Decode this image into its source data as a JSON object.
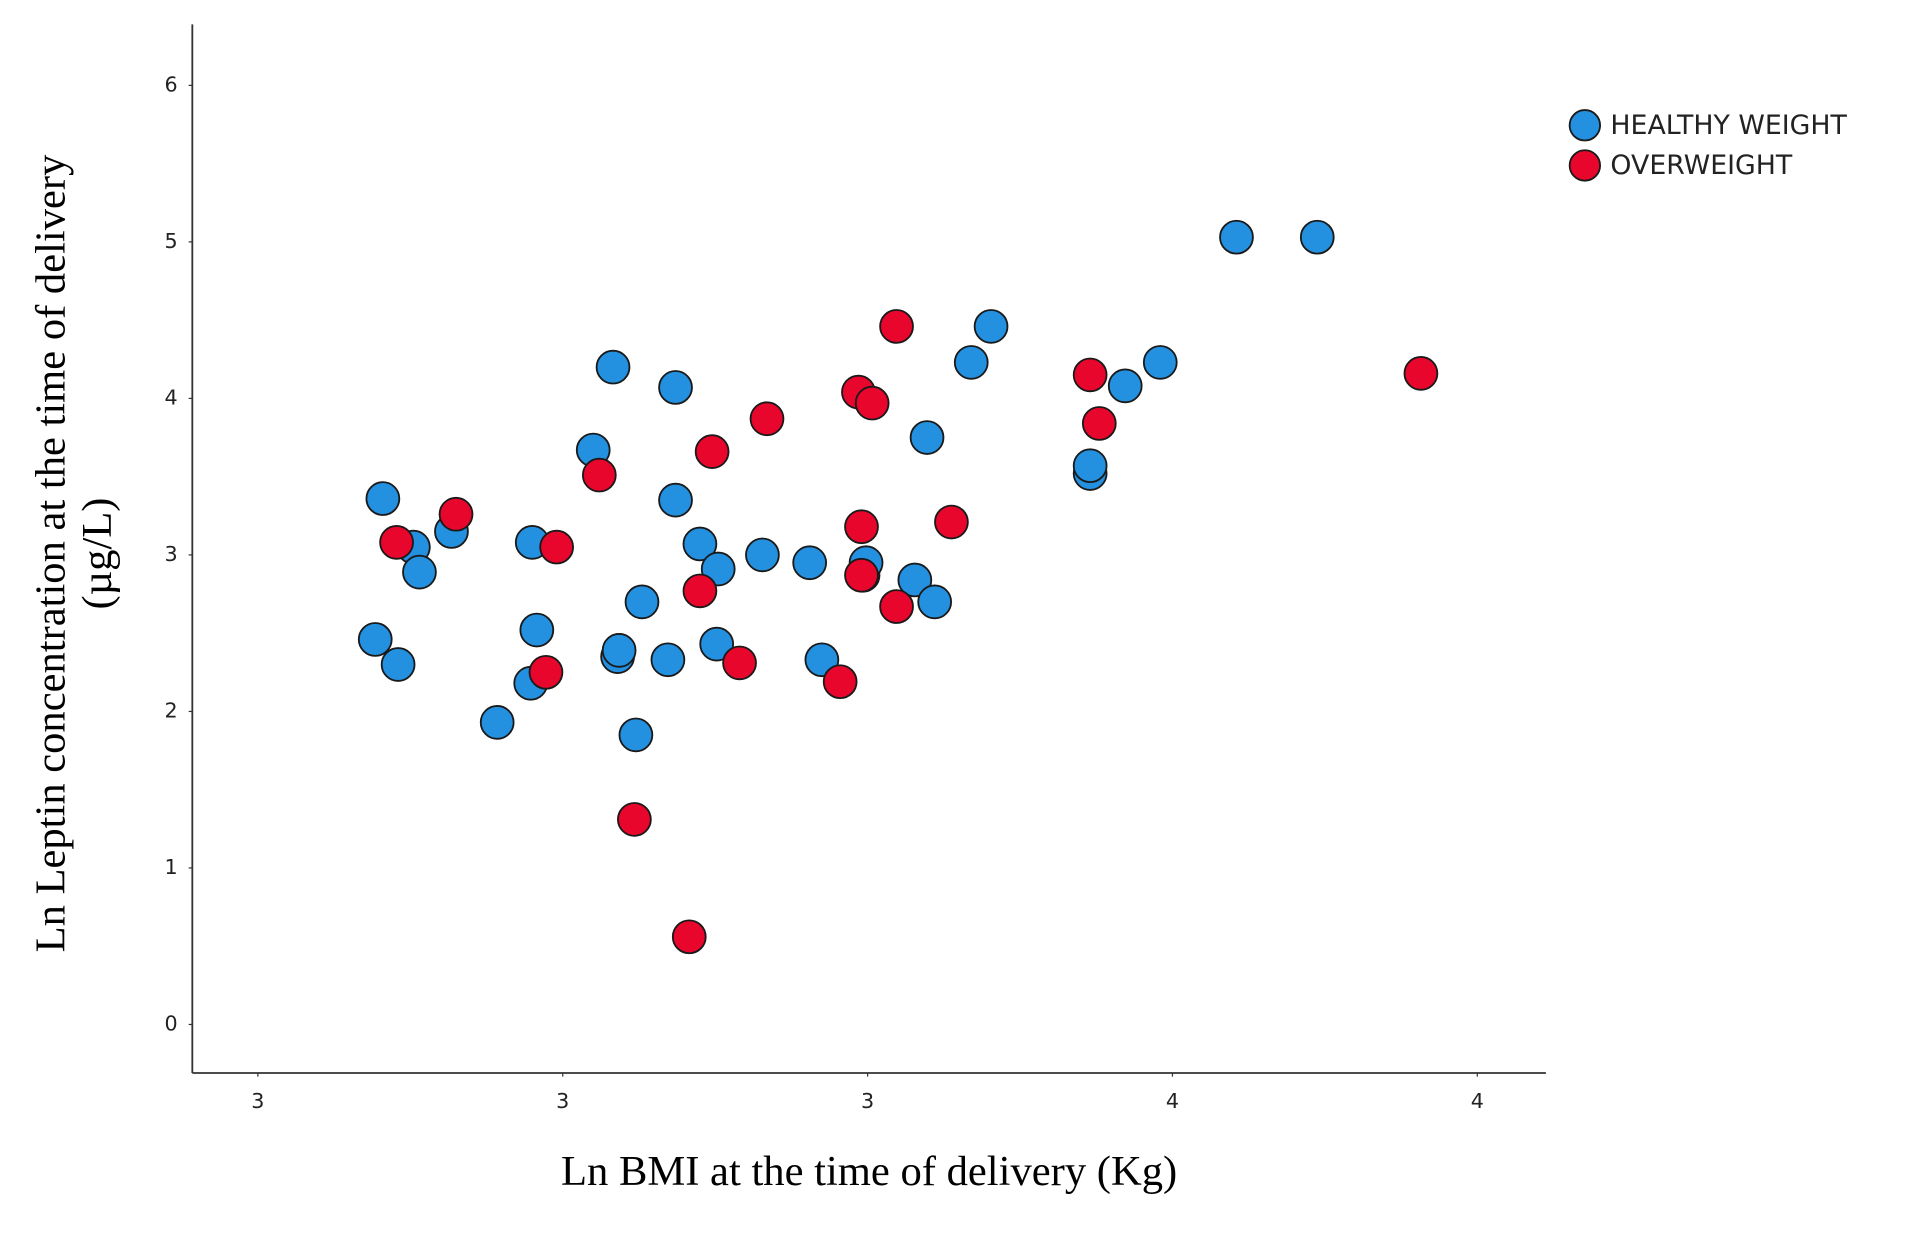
{
  "chart_data": {
    "type": "scatter",
    "x_label": "Ln BMI at the time of delivery (Kg)",
    "y_label_lines": [
      "Ln Leptin concentration at the time of delivery",
      "(µg/L)"
    ],
    "xlim": [
      2.957,
      3.845
    ],
    "ylim": [
      -0.31,
      6.39
    ],
    "xticks": [
      3,
      {
        "value": 3.2,
        "label": "3"
      },
      {
        "value": 3.4,
        "label": "3"
      },
      {
        "value": 3.6,
        "label": "4"
      },
      {
        "value": 3.8,
        "label": "4"
      }
    ],
    "yticks": [
      0,
      1,
      2,
      3,
      4,
      5,
      6
    ],
    "grid": false,
    "legend": "top-right",
    "series": [
      {
        "name": "HEALTHY WEIGHT",
        "color": "#2490e0",
        "x": [
          3.077,
          3.082,
          3.092,
          3.102,
          3.106,
          3.127,
          3.157,
          3.179,
          3.18,
          3.183,
          3.22,
          3.233,
          3.236,
          3.237,
          3.248,
          3.252,
          3.269,
          3.274,
          3.274,
          3.29,
          3.301,
          3.302,
          3.331,
          3.362,
          3.37,
          3.397,
          3.399,
          3.431,
          3.439,
          3.444,
          3.468,
          3.481,
          3.546,
          3.546,
          3.569,
          3.592,
          3.642,
          3.695
        ],
        "values": [
          2.46,
          3.36,
          2.3,
          3.05,
          2.89,
          3.15,
          1.93,
          2.18,
          3.08,
          2.52,
          3.67,
          4.2,
          2.35,
          2.39,
          1.85,
          2.7,
          2.33,
          4.07,
          3.35,
          3.07,
          2.43,
          2.91,
          3.0,
          2.95,
          2.33,
          2.87,
          2.95,
          2.84,
          3.75,
          2.7,
          4.23,
          4.46,
          3.52,
          3.57,
          4.08,
          4.23,
          5.03,
          5.03
        ]
      },
      {
        "name": "OVERWEIGHT",
        "color": "#e8062c",
        "x": [
          3.091,
          3.13,
          3.189,
          3.196,
          3.224,
          3.247,
          3.283,
          3.29,
          3.298,
          3.316,
          3.334,
          3.382,
          3.394,
          3.396,
          3.396,
          3.403,
          3.419,
          3.419,
          3.455,
          3.546,
          3.552,
          3.763
        ],
        "values": [
          3.08,
          3.26,
          2.25,
          3.05,
          3.51,
          1.31,
          0.56,
          2.77,
          3.66,
          2.31,
          3.87,
          2.19,
          4.04,
          3.18,
          2.87,
          3.97,
          2.67,
          4.46,
          3.21,
          4.15,
          3.84,
          4.16
        ]
      }
    ]
  }
}
